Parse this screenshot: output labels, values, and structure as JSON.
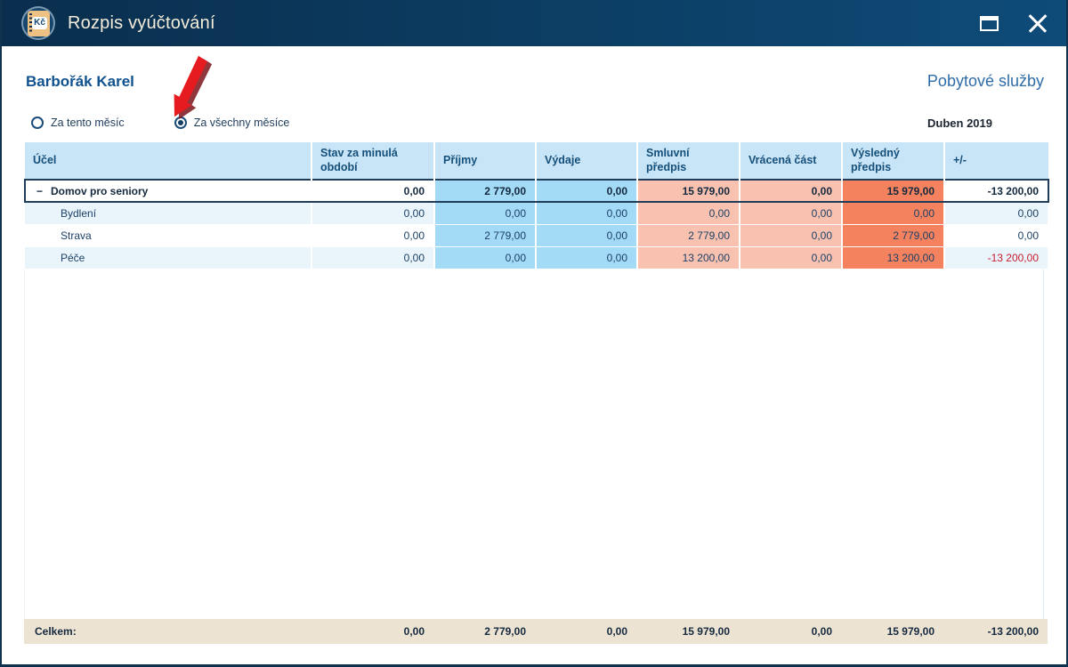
{
  "window": {
    "title": "Rozpis vyúčtování",
    "logo_text": "Kč",
    "controls": {
      "maximize_label": "maximize",
      "close_label": "close"
    }
  },
  "header": {
    "client_name": "Barbořák Karel",
    "service_type": "Pobytové služby",
    "period_label": "Duben 2019",
    "radio_options": [
      {
        "label": "Za tento měsíc",
        "selected": false
      },
      {
        "label": "Za všechny měsíce",
        "selected": true
      }
    ]
  },
  "table": {
    "columns": [
      "Účel",
      "Stav za minulá období",
      "Příjmy",
      "Výdaje",
      "Smluvní předpis",
      "Vrácená část",
      "Výsledný předpis",
      "+/-"
    ],
    "rows": [
      {
        "label": "Domov pro seniory",
        "level": 0,
        "expanded": true,
        "values": [
          "0,00",
          "2 779,00",
          "0,00",
          "15 979,00",
          "0,00",
          "15 979,00",
          "-13 200,00"
        ]
      },
      {
        "label": "Bydlení",
        "level": 1,
        "values": [
          "0,00",
          "0,00",
          "0,00",
          "0,00",
          "0,00",
          "0,00",
          "0,00"
        ]
      },
      {
        "label": "Strava",
        "level": 1,
        "values": [
          "0,00",
          "2 779,00",
          "0,00",
          "2 779,00",
          "0,00",
          "2 779,00",
          "0,00"
        ]
      },
      {
        "label": "Péče",
        "level": 1,
        "values": [
          "0,00",
          "0,00",
          "0,00",
          "13 200,00",
          "0,00",
          "13 200,00",
          "-13 200,00"
        ]
      }
    ],
    "footer": {
      "label": "Celkem:",
      "values": [
        "0,00",
        "2 779,00",
        "0,00",
        "15 979,00",
        "0,00",
        "15 979,00",
        "-13 200,00"
      ]
    }
  },
  "colors": {
    "titlebar_start": "#0a2e4d",
    "titlebar_end": "#0e4b79",
    "header_blue": "#c8e4f7",
    "cell_blue": "#a3daf6",
    "cell_salmon": "#f9c2b0",
    "cell_salmon_dark": "#f4825f",
    "zebra_tint": "#e9f4fb",
    "footer_beige": "#ece3d3",
    "negative_red": "#c81e2e",
    "arrow_red": "#e51b20",
    "client_name_blue": "#10528f",
    "service_blue": "#2e6da8"
  }
}
